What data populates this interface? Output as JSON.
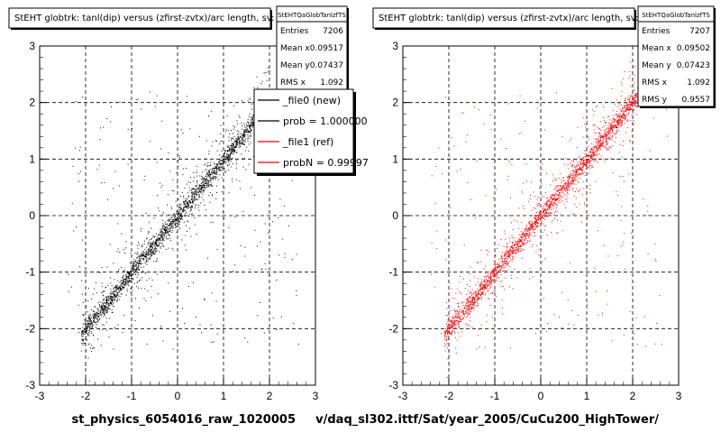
{
  "chart_data": [
    {
      "type": "scatter",
      "title": "StEHT globtrk: tanl(dip) versus (zfirst-zvtx)/arc length, sv:",
      "xlabel": "st_physics_6054016_raw_1020005",
      "ylabel": "",
      "xlim": [
        -3,
        3
      ],
      "ylim": [
        -3,
        3
      ],
      "x_ticks": [
        "-3",
        "-2",
        "-1",
        "0",
        "1",
        "2",
        "3"
      ],
      "y_ticks": [
        "-3",
        "-2",
        "-1",
        "0",
        "1",
        "2",
        "3"
      ],
      "grid": true,
      "color": "#000000",
      "trend": {
        "slope": 1.0,
        "x_range": [
          -2.1,
          2.0
        ]
      },
      "stats": {
        "title": "StEHTQaGlobTanlzfTS",
        "rows": [
          {
            "label": "Entries",
            "value": "7206"
          },
          {
            "label": "Mean x",
            "value": "0.09517"
          },
          {
            "label": "Mean y",
            "value": "0.07437"
          },
          {
            "label": "RMS x",
            "value": "1.092"
          }
        ]
      },
      "legend": [
        {
          "label": "_file0 (new)",
          "color": "#000000"
        },
        {
          "label": "prob = 1.000000",
          "color": "#000000"
        },
        {
          "label": "_file1 (ref)",
          "color": "#ff0000"
        },
        {
          "label": "probN = 0.99997",
          "color": "#ff0000"
        }
      ]
    },
    {
      "type": "scatter",
      "title": "StEHT globtrk: tanl(dip) versus (zfirst-zvtx)/arc length, sv:",
      "xlabel": "v/daq_sl302.ittf/Sat/year_2005/CuCu200_HighTower/",
      "ylabel": "",
      "xlim": [
        -3,
        3
      ],
      "ylim": [
        -3,
        3
      ],
      "x_ticks": [
        "-3",
        "-2",
        "-1",
        "0",
        "1",
        "2",
        "3"
      ],
      "y_ticks": [
        "-3",
        "-2",
        "-1",
        "0",
        "1",
        "2",
        "3"
      ],
      "grid": true,
      "color": "#ff0000",
      "trend": {
        "slope": 1.0,
        "x_range": [
          -2.1,
          2.1
        ]
      },
      "stats": {
        "title": "StEHTQaGlobTanlzfTS",
        "rows": [
          {
            "label": "Entries",
            "value": "7207"
          },
          {
            "label": "Mean x",
            "value": "0.09502"
          },
          {
            "label": "Mean y",
            "value": "0.07423"
          },
          {
            "label": "RMS x",
            "value": "1.092"
          },
          {
            "label": "RMS y",
            "value": "0.9557"
          }
        ]
      }
    }
  ]
}
